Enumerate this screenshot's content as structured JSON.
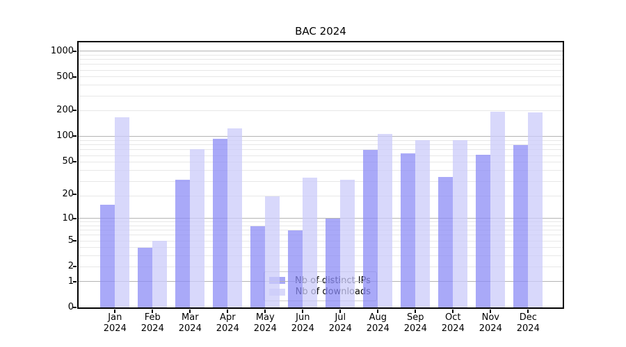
{
  "chart_data": {
    "type": "bar",
    "title": "BAC 2024",
    "categories": [
      "Jan 2024",
      "Feb 2024",
      "Mar 2024",
      "Apr 2024",
      "May 2024",
      "Jun 2024",
      "Jul 2024",
      "Aug 2024",
      "Sep 2024",
      "Oct 2024",
      "Nov 2024",
      "Dec 2024"
    ],
    "series": [
      {
        "name": "Nb of distinct IPs",
        "color": "#a9a9f7",
        "fill_rgba": "rgba(140,140,245,0.75)",
        "values": [
          15,
          4,
          30,
          93,
          8,
          7,
          10,
          69,
          63,
          33,
          60,
          78
        ]
      },
      {
        "name": "Nb of downloads",
        "color": "#d9d9fa",
        "fill_rgba": "rgba(203,203,250,0.75)",
        "values": [
          168,
          5,
          70,
          123,
          19,
          32,
          30,
          106,
          89,
          89,
          195,
          191
        ]
      }
    ],
    "yscale": "log10(value+1)",
    "yticks": [
      0,
      1,
      2,
      5,
      10,
      20,
      50,
      100,
      200,
      500,
      1000
    ],
    "ylim": [
      0,
      1267
    ],
    "xlabel": "",
    "ylabel": "",
    "grid": "horizontal",
    "major_gridline_values": [
      1,
      10,
      100,
      1000
    ],
    "major_grid_color": "#b4b4b4",
    "minor_grid_color": "#e7e7e7",
    "axis_color": "#000000",
    "legend_position": "lower center"
  }
}
